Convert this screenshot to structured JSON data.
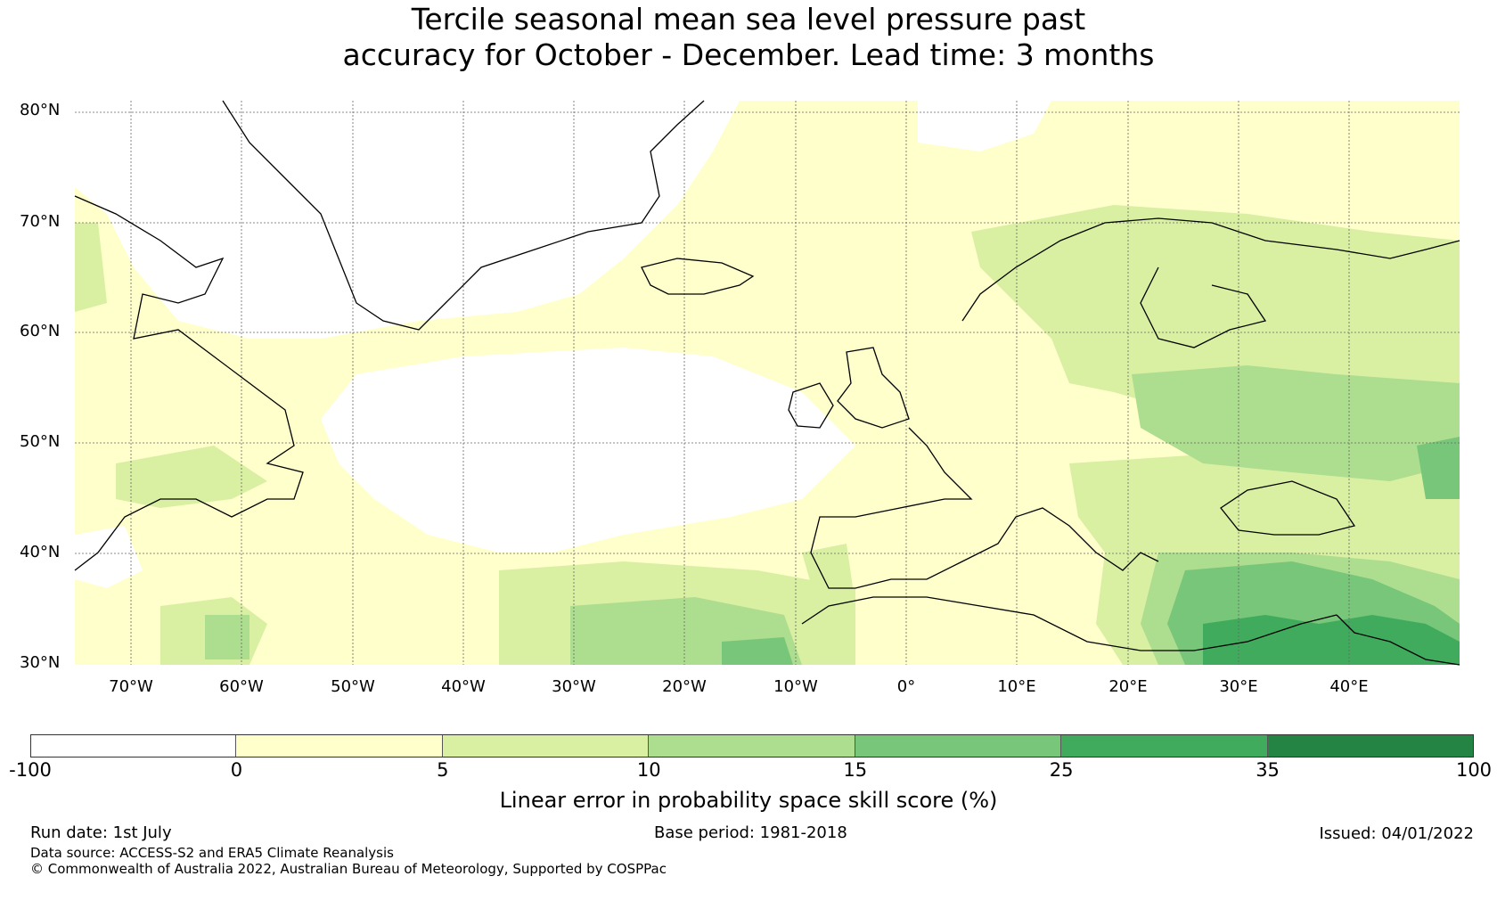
{
  "title_line1": "Tercile seasonal mean sea level pressure past",
  "title_line2": "accuracy for October - December. Lead time: 3 months",
  "map": {
    "lat_labels": [
      "80°N",
      "70°N",
      "60°N",
      "50°N",
      "40°N",
      "30°N"
    ],
    "lon_labels": [
      "70°W",
      "60°W",
      "50°W",
      "40°W",
      "30°W",
      "20°W",
      "10°W",
      "0°",
      "10°E",
      "20°E",
      "30°E",
      "40°E"
    ],
    "lon_range": [
      -75,
      50
    ],
    "lat_range": [
      30,
      80
    ]
  },
  "colorbar": {
    "ticks": [
      "-100",
      "0",
      "5",
      "10",
      "15",
      "25",
      "35",
      "100"
    ],
    "colors": [
      "#ffffff",
      "#ffffcc",
      "#d9f0a3",
      "#addd8e",
      "#78c679",
      "#41ab5d",
      "#238443"
    ],
    "label": "Linear error in probability space skill score (%)"
  },
  "footer": {
    "run_date": "Run date: 1st July",
    "base_period": "Base period: 1981-2018",
    "issued": "Issued: 04/01/2022",
    "data_source": "Data source: ACCESS-S2 and ERA5 Climate Reanalysis",
    "copyright": "© Commonwealth of Australia 2022, Australian Bureau of Meteorology, Supported by COSPPac"
  }
}
